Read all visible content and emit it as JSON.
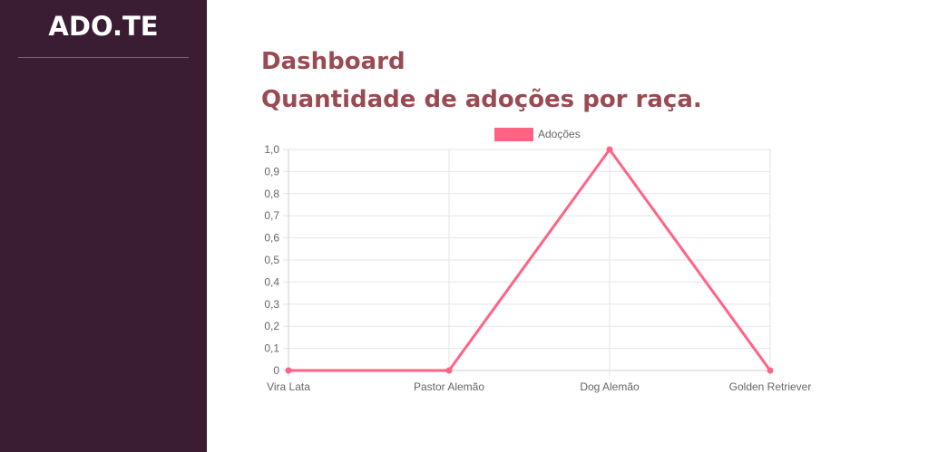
{
  "sidebar": {
    "brand": "ADO.TE"
  },
  "main": {
    "title": "Dashboard",
    "subtitle": "Quantidade de adoções por raça."
  },
  "colors": {
    "sidebar_bg": "#3a1d33",
    "heading": "#9a4a52",
    "series": "#ff6384",
    "grid": "#e5e5e5"
  },
  "chart_data": {
    "type": "line",
    "categories": [
      "Vira Lata",
      "Pastor Alemão",
      "Dog Alemão",
      "Golden Retriever"
    ],
    "series": [
      {
        "name": "Adoções",
        "values": [
          0,
          0,
          1,
          0
        ]
      }
    ],
    "yticks": [
      "0",
      "0,1",
      "0,2",
      "0,3",
      "0,4",
      "0,5",
      "0,6",
      "0,7",
      "0,8",
      "0,9",
      "1,0"
    ],
    "ylim": [
      0,
      1
    ],
    "grid": true,
    "legend": "top-center"
  }
}
